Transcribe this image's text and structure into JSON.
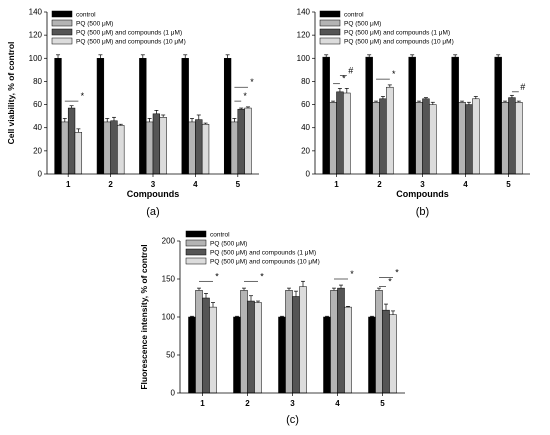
{
  "colors": {
    "control": "#000000",
    "pq": "#b4b4b4",
    "pq_c1": "#555555",
    "pq_c10": "#dcdcdc",
    "stroke": "#000000"
  },
  "chart_data": [
    {
      "id": "a",
      "type": "bar",
      "panel_label": "(a)",
      "xlabel": "Compounds",
      "ylabel": "Cell viability, % of control",
      "ylim": [
        0,
        140
      ],
      "yticks": [
        0,
        20,
        40,
        60,
        80,
        100,
        120,
        140
      ],
      "categories": [
        "1",
        "2",
        "3",
        "4",
        "5"
      ],
      "legend_position": "top-left",
      "series": [
        {
          "name": "control",
          "values": [
            100,
            100,
            100,
            100,
            100
          ],
          "errors": [
            3,
            3,
            3,
            3,
            3
          ]
        },
        {
          "name": "PQ (500 μM)",
          "values": [
            45,
            45,
            45,
            45,
            45
          ],
          "errors": [
            3,
            3,
            3,
            3,
            3
          ]
        },
        {
          "name": "PQ (500 μM) and compounds (1 μM)",
          "values": [
            57,
            46,
            52,
            47,
            56
          ],
          "errors": [
            2,
            3,
            3,
            4,
            1
          ]
        },
        {
          "name": "PQ (500 μM) and compounds (10 μM)",
          "values": [
            36,
            42,
            49,
            43,
            57
          ],
          "errors": [
            3,
            1,
            2,
            1,
            1
          ]
        }
      ],
      "annotations": [
        {
          "text": "*",
          "category": 0,
          "from_series": 1,
          "to_series": 3,
          "y": 63
        },
        {
          "text": "*",
          "category": 4,
          "from_series": 1,
          "to_series": 3,
          "y": 75
        },
        {
          "text": "*",
          "category": 4,
          "from_series": 1,
          "to_series": 2,
          "y": 63
        }
      ]
    },
    {
      "id": "b",
      "type": "bar",
      "panel_label": "(b)",
      "xlabel": "Compounds",
      "ylabel": "",
      "ylim": [
        0,
        140
      ],
      "yticks": [
        0,
        20,
        40,
        60,
        80,
        100,
        120,
        140
      ],
      "categories": [
        "1",
        "2",
        "3",
        "4",
        "5"
      ],
      "legend_position": "top-left",
      "series": [
        {
          "name": "control",
          "values": [
            101,
            101,
            101,
            101,
            101
          ],
          "errors": [
            2,
            2,
            2,
            2,
            2
          ]
        },
        {
          "name": "PQ (500 μM)",
          "values": [
            62,
            62,
            62,
            62,
            62
          ],
          "errors": [
            1,
            1,
            1,
            1,
            1
          ]
        },
        {
          "name": "PQ (500 μM) and compounds (1 μM)",
          "values": [
            71,
            65,
            65,
            60,
            66
          ],
          "errors": [
            3,
            2,
            1,
            2,
            2
          ]
        },
        {
          "name": "PQ (500 μM) and compounds (10 μM)",
          "values": [
            70,
            75,
            60,
            65,
            62
          ],
          "errors": [
            4,
            2,
            2,
            2,
            1
          ]
        }
      ],
      "annotations": [
        {
          "text": "#",
          "category": 0,
          "from_series": 2,
          "to_series": 3,
          "y": 85
        },
        {
          "text": "*",
          "category": 0,
          "from_series": 1,
          "to_series": 2,
          "y": 78
        },
        {
          "text": "*",
          "category": 1,
          "from_series": 1,
          "to_series": 3,
          "y": 82
        },
        {
          "text": "#",
          "category": 4,
          "from_series": 2,
          "to_series": 3,
          "y": 71
        }
      ]
    },
    {
      "id": "c",
      "type": "bar",
      "panel_label": "(c)",
      "xlabel": "",
      "ylabel": "Fluorescence intensity, % of control",
      "ylim": [
        0,
        200
      ],
      "yticks": [
        0,
        50,
        100,
        150,
        200
      ],
      "categories": [
        "1",
        "2",
        "3",
        "4",
        "5"
      ],
      "legend_position": "top-left",
      "series": [
        {
          "name": "control",
          "values": [
            100,
            100,
            100,
            100,
            100
          ],
          "errors": [
            1,
            1,
            1,
            1,
            1
          ]
        },
        {
          "name": "PQ (500 μM)",
          "values": [
            135,
            135,
            135,
            135,
            135
          ],
          "errors": [
            3,
            3,
            3,
            3,
            3
          ]
        },
        {
          "name": "PQ (500 μM) and compounds (1 μM)",
          "values": [
            125,
            121,
            127,
            138,
            109
          ],
          "errors": [
            6,
            7,
            7,
            4,
            8
          ]
        },
        {
          "name": "PQ (500 μM) and compounds (10 μM)",
          "values": [
            113,
            119,
            140,
            113,
            103
          ],
          "errors": [
            6,
            2,
            7,
            1,
            5
          ]
        }
      ],
      "annotations": [
        {
          "text": "*",
          "category": 0,
          "from_series": 1,
          "to_series": 3,
          "y": 147
        },
        {
          "text": "*",
          "category": 1,
          "from_series": 1,
          "to_series": 3,
          "y": 147
        },
        {
          "text": "*",
          "category": 3,
          "from_series": 1,
          "to_series": 3,
          "y": 150
        },
        {
          "text": "*",
          "category": 4,
          "from_series": 1,
          "to_series": 3,
          "y": 152
        },
        {
          "text": "*",
          "category": 4,
          "from_series": 1,
          "to_series": 2,
          "y": 140
        }
      ]
    }
  ]
}
